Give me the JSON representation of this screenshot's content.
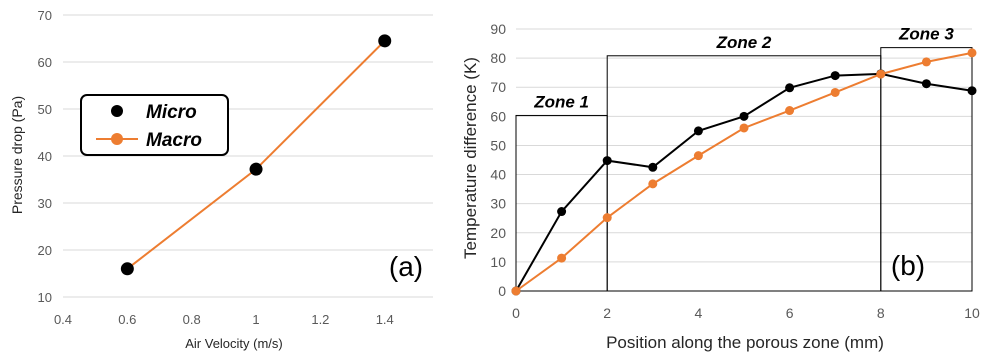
{
  "chart_data": [
    {
      "type": "scatter",
      "panel_label": "(a)",
      "xlabel": "Air Velocity (m/s)",
      "ylabel": "Pressure drop (Pa)",
      "xlim": [
        0.4,
        1.55
      ],
      "ylim": [
        10,
        70
      ],
      "xticks": [
        0.4,
        0.6,
        0.8,
        1,
        1.2,
        1.4
      ],
      "xtick_labels": [
        "0.4",
        "0.6",
        "0.8",
        "1",
        "1.2",
        "1.4"
      ],
      "yticks": [
        10,
        20,
        30,
        40,
        50,
        60,
        70
      ],
      "ytick_labels": [
        "10",
        "20",
        "30",
        "40",
        "50",
        "60",
        "70"
      ],
      "grid": "horizontal",
      "legend": "left",
      "series": [
        {
          "name": "Micro",
          "style": "markers",
          "color": "#000000",
          "x": [
            0.6,
            1.0,
            1.4
          ],
          "y": [
            16,
            37.2,
            64.5
          ]
        },
        {
          "name": "Macro",
          "style": "line-markers",
          "color": "#ed7d31",
          "x": [
            0.6,
            1.0,
            1.4
          ],
          "y": [
            16,
            37.2,
            64.5
          ]
        }
      ]
    },
    {
      "type": "line",
      "panel_label": "(b)",
      "xlabel": "Position along the porous zone (mm)",
      "ylabel": "Temperature difference (K)",
      "xlim": [
        0,
        10
      ],
      "ylim": [
        0,
        90
      ],
      "xticks": [
        0,
        2,
        4,
        6,
        8,
        10
      ],
      "xtick_labels": [
        "0",
        "2",
        "4",
        "6",
        "8",
        "10"
      ],
      "yticks": [
        0,
        10,
        20,
        30,
        40,
        50,
        60,
        70,
        80,
        90
      ],
      "ytick_labels": [
        "0",
        "10",
        "20",
        "30",
        "40",
        "50",
        "60",
        "70",
        "80",
        "90"
      ],
      "grid": "horizontal",
      "series": [
        {
          "color": "#000000",
          "x": [
            0,
            1,
            2,
            3,
            4,
            5,
            6,
            7,
            8,
            9,
            10
          ],
          "y": [
            0,
            27.3,
            44.8,
            42.5,
            55,
            60,
            69.8,
            74,
            74.6,
            71.2,
            68.8
          ]
        },
        {
          "color": "#ed7d31",
          "x": [
            0,
            1,
            2,
            3,
            4,
            5,
            6,
            7,
            8,
            9,
            10
          ],
          "y": [
            0,
            11.3,
            25.2,
            36.8,
            46.5,
            56,
            62,
            68.2,
            74.5,
            78.7,
            81.8
          ]
        }
      ],
      "zones": [
        {
          "label": "Zone 1",
          "x0": 0,
          "x1": 2,
          "top": 60.3
        },
        {
          "label": "Zone 2",
          "x0": 2,
          "x1": 8,
          "top": 80.8
        },
        {
          "label": "Zone 3",
          "x0": 8,
          "x1": 10,
          "top": 83.6
        }
      ]
    }
  ]
}
